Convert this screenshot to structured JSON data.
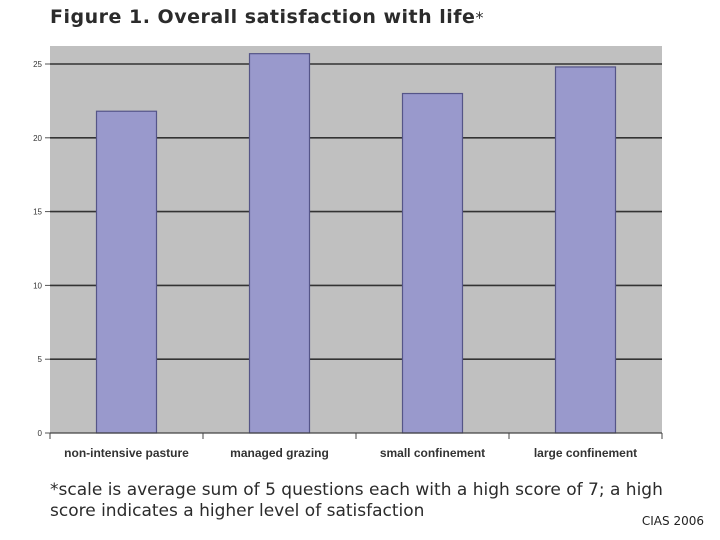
{
  "chart_data": {
    "type": "bar",
    "title": "Figure 1. Overall satisfaction with life",
    "title_suffix": "*",
    "categories": [
      "non-intensive pasture",
      "managed grazing",
      "small confinement",
      "large confinement"
    ],
    "values": [
      21.8,
      25.7,
      23.0,
      24.8
    ],
    "ylim": [
      0,
      25
    ],
    "yticks": [
      "0",
      "5",
      "10",
      "15",
      "20",
      "25"
    ],
    "grid": true,
    "colors": {
      "bar": "#9999cc",
      "bar_border": "#555588",
      "plot_bg": "#c0c0c0",
      "grid": "#333333"
    }
  },
  "footnote": "*scale is average sum of 5 questions each with a high score of 7; a high score indicates a higher level of satisfaction",
  "credit": "CIAS 2006"
}
